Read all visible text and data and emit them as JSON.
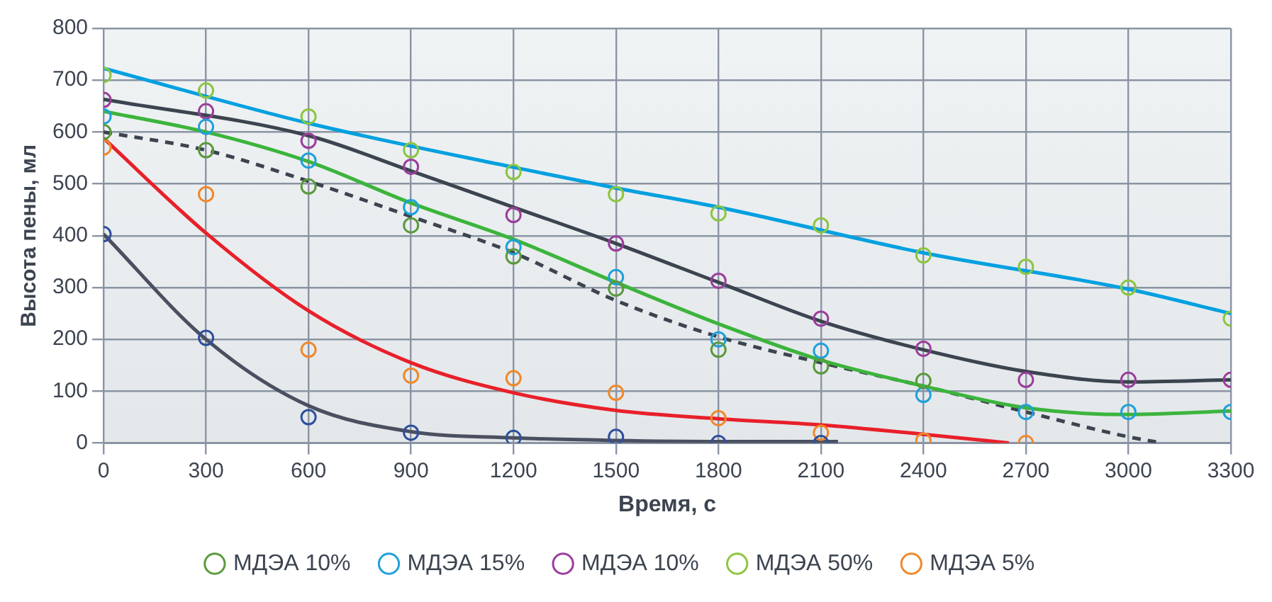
{
  "chart_data": {
    "type": "scatter",
    "xlabel": "Время, с",
    "ylabel": "Высота пены, мл",
    "xlim": [
      0,
      3300
    ],
    "ylim": [
      0,
      800
    ],
    "xticks": [
      0,
      300,
      600,
      900,
      1200,
      1500,
      1800,
      2100,
      2400,
      2700,
      3000,
      3300
    ],
    "yticks": [
      0,
      100,
      200,
      300,
      400,
      500,
      600,
      700,
      800
    ],
    "grid": true,
    "legend": "bottom",
    "series": [
      {
        "name": "МДЭА 10%",
        "type": "scatter",
        "marker": "circle",
        "color": "#5a9a3c",
        "x": [
          0,
          300,
          600,
          900,
          1200,
          1500,
          1800,
          2100,
          2400
        ],
        "values": [
          600,
          565,
          495,
          420,
          360,
          298,
          180,
          148,
          120
        ]
      },
      {
        "name": "МДЭА 15%",
        "type": "scatter",
        "marker": "circle",
        "color": "#1ea0dc",
        "x": [
          0,
          300,
          600,
          900,
          1200,
          1500,
          1800,
          2100,
          2400,
          2700,
          3000,
          3300
        ],
        "values": [
          630,
          610,
          545,
          455,
          378,
          320,
          200,
          178,
          93,
          60,
          60,
          60
        ]
      },
      {
        "name": "МДЭА 10%",
        "type": "scatter",
        "marker": "circle",
        "color": "#9b3d9b",
        "x": [
          0,
          300,
          600,
          900,
          1200,
          1500,
          1800,
          2100,
          2400,
          2700,
          3000,
          3300
        ],
        "values": [
          662,
          640,
          583,
          533,
          440,
          385,
          313,
          240,
          182,
          122,
          122,
          122
        ]
      },
      {
        "name": "МДЭА 50%",
        "type": "scatter",
        "marker": "circle",
        "color": "#8cc63f",
        "x": [
          0,
          300,
          600,
          900,
          1200,
          1500,
          1800,
          2100,
          2400,
          2700,
          3000,
          3300
        ],
        "values": [
          710,
          680,
          630,
          565,
          523,
          480,
          443,
          420,
          362,
          340,
          300,
          240
        ]
      },
      {
        "type": "scatter",
        "marker": "circle",
        "color": "#2e4f9c",
        "x": [
          0,
          300,
          600,
          900,
          1200,
          1500,
          1800,
          2100
        ],
        "values": [
          403,
          203,
          50,
          20,
          10,
          12,
          0,
          0
        ]
      },
      {
        "name": "МДЭА 5%",
        "type": "scatter",
        "marker": "circle",
        "color": "#f0882a",
        "x": [
          0,
          300,
          600,
          900,
          1200,
          1500,
          1800,
          2100,
          2400,
          2700
        ],
        "values": [
          570,
          480,
          180,
          130,
          125,
          97,
          48,
          20,
          5,
          0
        ]
      },
      {
        "type": "line",
        "marker": "none",
        "line_style": "solid",
        "color": "#00a0e0",
        "x": [
          0,
          600,
          1200,
          1500,
          1800,
          2400,
          3000,
          3300
        ],
        "values": [
          723,
          617,
          532,
          492,
          455,
          367,
          297,
          250
        ]
      },
      {
        "type": "line",
        "marker": "none",
        "line_style": "solid",
        "color": "#3c4450",
        "x": [
          0,
          600,
          900,
          1200,
          1500,
          1800,
          2100,
          2400,
          2700,
          3000,
          3300
        ],
        "values": [
          663,
          593,
          525,
          455,
          385,
          310,
          235,
          180,
          138,
          118,
          122
        ]
      },
      {
        "type": "line",
        "marker": "none",
        "line_style": "solid",
        "color": "#3cb43c",
        "x": [
          0,
          300,
          600,
          900,
          1200,
          1500,
          1800,
          2100,
          2400,
          2700,
          3000,
          3300
        ],
        "values": [
          640,
          600,
          543,
          463,
          393,
          310,
          230,
          160,
          110,
          68,
          55,
          62
        ]
      },
      {
        "type": "line",
        "marker": "none",
        "line_style": "dashed",
        "color": "#3c4450",
        "x": [
          0,
          300,
          600,
          900,
          1200,
          1500,
          1800,
          2100,
          2400,
          2700,
          3000,
          3100
        ],
        "values": [
          600,
          565,
          505,
          437,
          367,
          275,
          205,
          155,
          110,
          60,
          12,
          0
        ]
      },
      {
        "type": "line",
        "marker": "none",
        "line_style": "solid",
        "color": "#e8202a",
        "x": [
          0,
          300,
          600,
          900,
          1200,
          1500,
          1800,
          2100,
          2400,
          2650
        ],
        "values": [
          588,
          405,
          255,
          155,
          97,
          63,
          47,
          35,
          17,
          0
        ]
      },
      {
        "type": "line",
        "marker": "none",
        "line_style": "solid",
        "color": "#4a5060",
        "x": [
          0,
          300,
          600,
          900,
          1200,
          1500,
          1800,
          2150
        ],
        "values": [
          403,
          200,
          72,
          22,
          10,
          5,
          3,
          3
        ]
      }
    ]
  }
}
